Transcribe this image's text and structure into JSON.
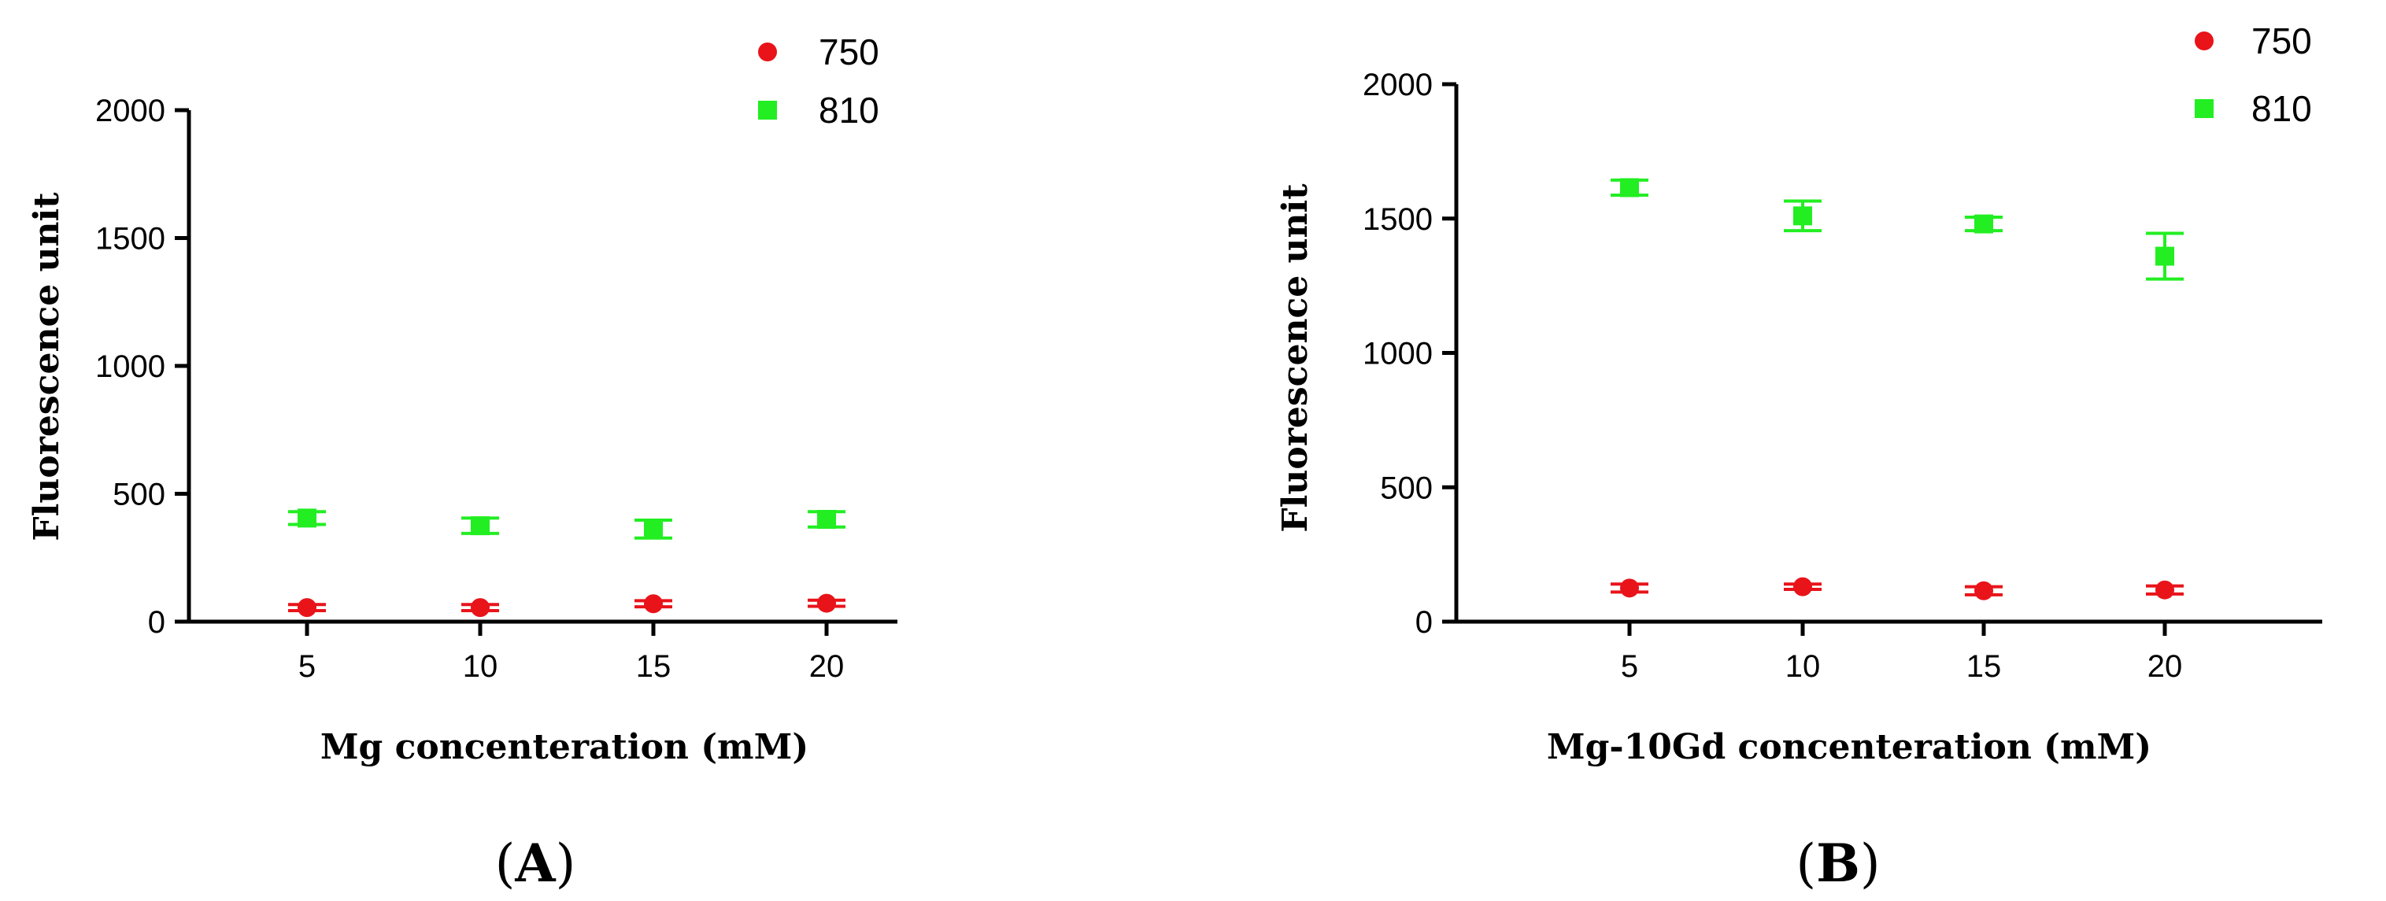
{
  "chart_data": [
    {
      "type": "scatter",
      "panel_label": "A",
      "x": [
        5,
        10,
        15,
        20
      ],
      "xlabel": "Mg concenteration (mM)",
      "ylabel": "Fluorescence unit",
      "ylim": [
        0,
        2000
      ],
      "yticks": [
        0,
        500,
        1000,
        1500,
        2000
      ],
      "legend_position": "top-right",
      "series": [
        {
          "name": "750",
          "marker": "circle",
          "color": "#e8141a",
          "values": [
            55,
            55,
            70,
            72
          ],
          "errors": [
            12,
            12,
            12,
            12
          ]
        },
        {
          "name": "810",
          "marker": "square",
          "color": "#22ee22",
          "values": [
            405,
            375,
            362,
            400
          ],
          "errors": [
            25,
            30,
            35,
            30
          ]
        }
      ]
    },
    {
      "type": "scatter",
      "panel_label": "B",
      "x": [
        5,
        10,
        15,
        20
      ],
      "xlabel": "Mg-10Gd concenteration (mM)",
      "ylabel": "Fluorescence unit",
      "ylim": [
        0,
        2000
      ],
      "yticks": [
        0,
        500,
        1000,
        1500,
        2000
      ],
      "legend_position": "top-right",
      "series": [
        {
          "name": "750",
          "marker": "circle",
          "color": "#e8141a",
          "values": [
            125,
            130,
            115,
            118
          ],
          "errors": [
            15,
            10,
            15,
            15
          ]
        },
        {
          "name": "810",
          "marker": "square",
          "color": "#22ee22",
          "values": [
            1615,
            1510,
            1480,
            1360
          ],
          "errors": [
            28,
            55,
            25,
            85
          ]
        }
      ]
    }
  ]
}
